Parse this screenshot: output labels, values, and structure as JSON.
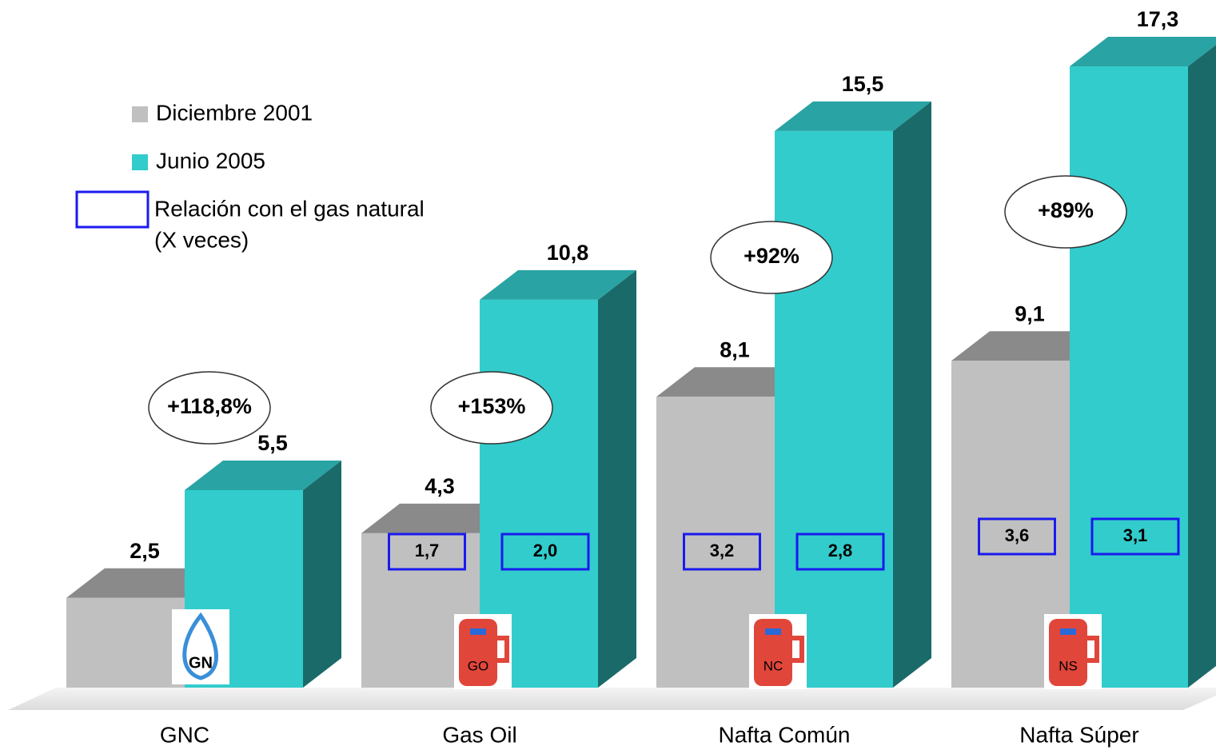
{
  "chart_data": {
    "type": "bar",
    "categories": [
      "GNC",
      "Gas Oil",
      "Nafta Común",
      "Nafta Súper"
    ],
    "series": [
      {
        "name": "Diciembre 2001",
        "color": "#c0c0c0",
        "values": [
          2.5,
          4.3,
          8.1,
          9.1
        ],
        "value_labels": [
          "2,5",
          "4,3",
          "8,1",
          "9,1"
        ],
        "ratio_labels": [
          null,
          "1,7",
          "3,2",
          "3,6"
        ]
      },
      {
        "name": "Junio 2005",
        "color": "#33cccc",
        "values": [
          5.5,
          10.8,
          15.5,
          17.3
        ],
        "value_labels": [
          "5,5",
          "10,8",
          "15,5",
          "17,3"
        ],
        "ratio_labels": [
          null,
          "2,0",
          "2,8",
          "3,1"
        ]
      }
    ],
    "growth_labels": [
      "+118,8%",
      "+153%",
      "+92%",
      "+89%"
    ],
    "icons": [
      "GN",
      "GO",
      "NC",
      "NS"
    ],
    "legend_note": [
      "Relación con el gas natural",
      "(X veces)"
    ]
  }
}
